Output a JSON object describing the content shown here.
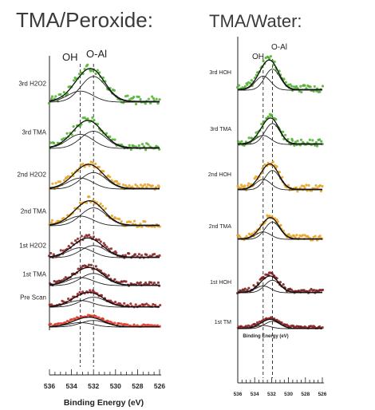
{
  "chart_data": [
    {
      "type": "scatter",
      "title": "TMA/Peroxide:",
      "xlabel": "Binding Energy (eV)",
      "xlim": [
        536,
        526
      ],
      "xticks": [
        "536",
        "534",
        "532",
        "530",
        "528",
        "526"
      ],
      "peaks": [
        {
          "name": "OH",
          "x": 533.2
        },
        {
          "name": "O-Al",
          "x": 532.0
        }
      ],
      "series": [
        {
          "name": "3rd H2O2",
          "color": "#4caf2a",
          "amplitude": 1.0,
          "oh_fraction": 0.3
        },
        {
          "name": "3rd TMA",
          "color": "#4caf2a",
          "amplitude": 0.85,
          "oh_fraction": 0.45
        },
        {
          "name": "2nd H2O2",
          "color": "#e8a020",
          "amplitude": 0.75,
          "oh_fraction": 0.4
        },
        {
          "name": "2nd TMA",
          "color": "#e8a020",
          "amplitude": 0.75,
          "oh_fraction": 0.35
        },
        {
          "name": "1st H2O2",
          "color": "#8a2020",
          "amplitude": 0.6,
          "oh_fraction": 0.45
        },
        {
          "name": "1st TMA",
          "color": "#7a1a1a",
          "amplitude": 0.55,
          "oh_fraction": 0.4
        },
        {
          "name": "Pre Scan",
          "color": "#9a1a1a",
          "amplitude": 0.45,
          "oh_fraction": 0.4
        },
        {
          "name": "",
          "color": "#e03020",
          "amplitude": 0.3,
          "oh_fraction": 0.4
        }
      ]
    },
    {
      "type": "scatter",
      "title": "TMA/Water:",
      "xlabel": "Binding Energy (eV)",
      "xlim": [
        536,
        526
      ],
      "xticks": [
        "536",
        "534",
        "532",
        "530",
        "528",
        "526"
      ],
      "peaks": [
        {
          "name": "OH",
          "x": 533.0
        },
        {
          "name": "O-Al",
          "x": 531.9
        }
      ],
      "series": [
        {
          "name": "3rd HOH",
          "color": "#4caf2a",
          "amplitude": 1.0,
          "oh_fraction": 0.4
        },
        {
          "name": "3rd TMA",
          "color": "#4caf2a",
          "amplitude": 0.85,
          "oh_fraction": 0.3
        },
        {
          "name": "2nd HOH",
          "color": "#e8a020",
          "amplitude": 0.85,
          "oh_fraction": 0.35
        },
        {
          "name": "2nd TMA",
          "color": "#e8a020",
          "amplitude": 0.7,
          "oh_fraction": 0.3
        },
        {
          "name": "1st HOH",
          "color": "#7a1a1a",
          "amplitude": 0.55,
          "oh_fraction": 0.35
        },
        {
          "name": "1st TM",
          "color": "#8a1a1a",
          "amplitude": 0.3,
          "oh_fraction": 0.3
        }
      ],
      "inset_label": "Binding Energy (eV)"
    }
  ]
}
